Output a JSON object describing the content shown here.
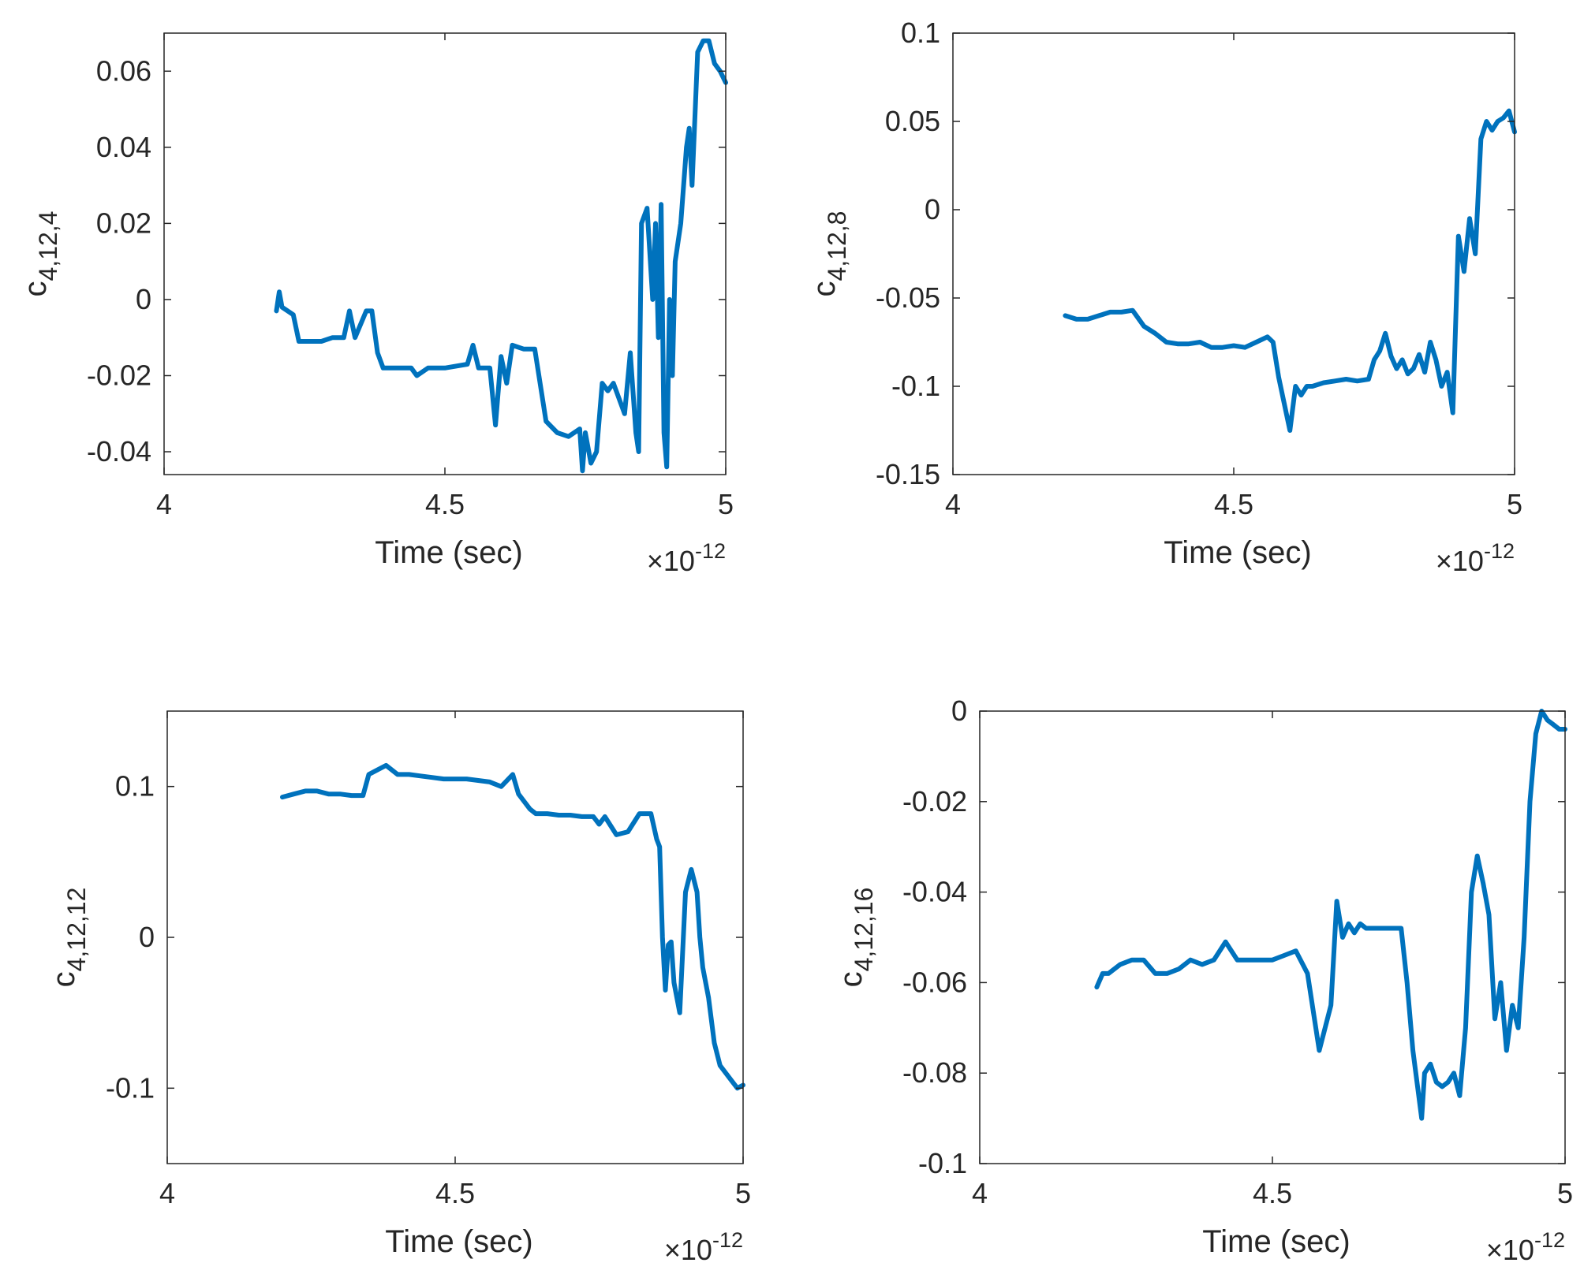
{
  "chart_data": [
    {
      "type": "line",
      "title": "",
      "xlabel": "Time (sec)",
      "ylabel_base": "c",
      "ylabel_sub": "4,12,4",
      "x_exponent_base": "×10",
      "x_exponent_power": "-12",
      "xlim": [
        4,
        5
      ],
      "ylim": [
        -0.046,
        0.07
      ],
      "xticks": [
        4,
        4.5,
        5
      ],
      "xtick_labels": [
        "4",
        "4.5",
        "5"
      ],
      "yticks": [
        -0.04,
        -0.02,
        0,
        0.02,
        0.04,
        0.06
      ],
      "ytick_labels": [
        "-0.04",
        "-0.02",
        "0",
        "0.02",
        "0.04",
        "0.06"
      ],
      "grid": false,
      "series": [
        {
          "name": "c4,12,4",
          "color": "#0072BD",
          "x": [
            4.2,
            4.205,
            4.21,
            4.22,
            4.23,
            4.24,
            4.26,
            4.28,
            4.3,
            4.32,
            4.33,
            4.34,
            4.36,
            4.37,
            4.38,
            4.39,
            4.4,
            4.42,
            4.44,
            4.45,
            4.47,
            4.5,
            4.54,
            4.55,
            4.56,
            4.58,
            4.59,
            4.6,
            4.61,
            4.62,
            4.64,
            4.66,
            4.68,
            4.7,
            4.72,
            4.74,
            4.745,
            4.75,
            4.76,
            4.77,
            4.78,
            4.79,
            4.8,
            4.82,
            4.83,
            4.84,
            4.845,
            4.85,
            4.86,
            4.87,
            4.875,
            4.88,
            4.885,
            4.89,
            4.895,
            4.9,
            4.905,
            4.91,
            4.92,
            4.93,
            4.935,
            4.94,
            4.95,
            4.96,
            4.97,
            4.98,
            4.99,
            5.0
          ],
          "y": [
            -0.003,
            0.002,
            -0.002,
            -0.003,
            -0.004,
            -0.011,
            -0.011,
            -0.011,
            -0.01,
            -0.01,
            -0.003,
            -0.01,
            -0.003,
            -0.003,
            -0.014,
            -0.018,
            -0.018,
            -0.018,
            -0.018,
            -0.02,
            -0.018,
            -0.018,
            -0.017,
            -0.012,
            -0.018,
            -0.018,
            -0.033,
            -0.015,
            -0.022,
            -0.012,
            -0.013,
            -0.013,
            -0.032,
            -0.035,
            -0.036,
            -0.034,
            -0.045,
            -0.035,
            -0.043,
            -0.04,
            -0.022,
            -0.024,
            -0.022,
            -0.03,
            -0.014,
            -0.035,
            -0.04,
            0.02,
            0.024,
            0.0,
            0.02,
            -0.01,
            0.025,
            -0.035,
            -0.044,
            0.0,
            -0.02,
            0.01,
            0.02,
            0.04,
            0.045,
            0.03,
            0.065,
            0.068,
            0.068,
            0.062,
            0.06,
            0.057
          ]
        }
      ]
    },
    {
      "type": "line",
      "title": "",
      "xlabel": "Time (sec)",
      "ylabel_base": "c",
      "ylabel_sub": "4,12,8",
      "x_exponent_base": "×10",
      "x_exponent_power": "-12",
      "xlim": [
        4,
        5
      ],
      "ylim": [
        -0.15,
        0.1
      ],
      "xticks": [
        4,
        4.5,
        5
      ],
      "xtick_labels": [
        "4",
        "4.5",
        "5"
      ],
      "yticks": [
        -0.15,
        -0.1,
        -0.05,
        0,
        0.05,
        0.1
      ],
      "ytick_labels": [
        "-0.15",
        "-0.1",
        "-0.05",
        "0",
        "0.05",
        "0.1"
      ],
      "grid": false,
      "series": [
        {
          "name": "c4,12,8",
          "color": "#0072BD",
          "x": [
            4.2,
            4.22,
            4.24,
            4.26,
            4.28,
            4.3,
            4.32,
            4.34,
            4.36,
            4.38,
            4.4,
            4.42,
            4.44,
            4.46,
            4.48,
            4.5,
            4.52,
            4.54,
            4.56,
            4.57,
            4.58,
            4.59,
            4.6,
            4.61,
            4.62,
            4.63,
            4.64,
            4.66,
            4.68,
            4.7,
            4.72,
            4.74,
            4.75,
            4.76,
            4.77,
            4.78,
            4.79,
            4.8,
            4.81,
            4.82,
            4.83,
            4.84,
            4.85,
            4.86,
            4.87,
            4.88,
            4.89,
            4.9,
            4.91,
            4.92,
            4.93,
            4.94,
            4.95,
            4.96,
            4.97,
            4.98,
            4.99,
            5.0
          ],
          "y": [
            -0.06,
            -0.062,
            -0.062,
            -0.06,
            -0.058,
            -0.058,
            -0.057,
            -0.066,
            -0.07,
            -0.075,
            -0.076,
            -0.076,
            -0.075,
            -0.078,
            -0.078,
            -0.077,
            -0.078,
            -0.075,
            -0.072,
            -0.075,
            -0.095,
            -0.11,
            -0.125,
            -0.1,
            -0.105,
            -0.1,
            -0.1,
            -0.098,
            -0.097,
            -0.096,
            -0.097,
            -0.096,
            -0.085,
            -0.08,
            -0.07,
            -0.083,
            -0.09,
            -0.085,
            -0.093,
            -0.09,
            -0.082,
            -0.092,
            -0.075,
            -0.085,
            -0.1,
            -0.092,
            -0.115,
            -0.015,
            -0.035,
            -0.005,
            -0.025,
            0.04,
            0.05,
            0.045,
            0.05,
            0.052,
            0.056,
            0.044
          ]
        }
      ]
    },
    {
      "type": "line",
      "title": "",
      "xlabel": "Time (sec)",
      "ylabel_base": "c",
      "ylabel_sub": "4,12,12",
      "x_exponent_base": "×10",
      "x_exponent_power": "-12",
      "xlim": [
        4,
        5
      ],
      "ylim": [
        -0.15,
        0.15
      ],
      "xticks": [
        4,
        4.5,
        5
      ],
      "xtick_labels": [
        "4",
        "4.5",
        "5"
      ],
      "yticks": [
        -0.1,
        0,
        0.1
      ],
      "ytick_labels": [
        "-0.1",
        "0",
        "0.1"
      ],
      "grid": false,
      "series": [
        {
          "name": "c4,12,12",
          "color": "#0072BD",
          "x": [
            4.2,
            4.22,
            4.24,
            4.26,
            4.28,
            4.3,
            4.32,
            4.34,
            4.35,
            4.36,
            4.38,
            4.4,
            4.42,
            4.44,
            4.46,
            4.48,
            4.5,
            4.52,
            4.54,
            4.56,
            4.58,
            4.6,
            4.61,
            4.62,
            4.63,
            4.64,
            4.66,
            4.68,
            4.7,
            4.72,
            4.74,
            4.75,
            4.76,
            4.78,
            4.8,
            4.82,
            4.84,
            4.85,
            4.855,
            4.86,
            4.865,
            4.87,
            4.875,
            4.88,
            4.89,
            4.9,
            4.91,
            4.92,
            4.925,
            4.93,
            4.94,
            4.95,
            4.96,
            4.97,
            4.98,
            4.99,
            5.0
          ],
          "y": [
            0.093,
            0.095,
            0.097,
            0.097,
            0.095,
            0.095,
            0.094,
            0.094,
            0.108,
            0.11,
            0.114,
            0.108,
            0.108,
            0.107,
            0.106,
            0.105,
            0.105,
            0.105,
            0.104,
            0.103,
            0.1,
            0.108,
            0.095,
            0.09,
            0.085,
            0.082,
            0.082,
            0.081,
            0.081,
            0.08,
            0.08,
            0.075,
            0.08,
            0.068,
            0.07,
            0.082,
            0.082,
            0.065,
            0.06,
            0.0,
            -0.035,
            -0.005,
            -0.003,
            -0.03,
            -0.05,
            0.03,
            0.045,
            0.03,
            0.0,
            -0.02,
            -0.04,
            -0.07,
            -0.085,
            -0.09,
            -0.095,
            -0.1,
            -0.098
          ]
        }
      ]
    },
    {
      "type": "line",
      "title": "",
      "xlabel": "Time (sec)",
      "ylabel_base": "c",
      "ylabel_sub": "4,12,16",
      "x_exponent_base": "×10",
      "x_exponent_power": "-12",
      "xlim": [
        4,
        5
      ],
      "ylim": [
        -0.1,
        0
      ],
      "xticks": [
        4,
        4.5,
        5
      ],
      "xtick_labels": [
        "4",
        "4.5",
        "5"
      ],
      "yticks": [
        -0.1,
        -0.08,
        -0.06,
        -0.04,
        -0.02,
        0
      ],
      "ytick_labels": [
        "-0.1",
        "-0.08",
        "-0.06",
        "-0.04",
        "-0.02",
        "0"
      ],
      "grid": false,
      "series": [
        {
          "name": "c4,12,16",
          "color": "#0072BD",
          "x": [
            4.2,
            4.21,
            4.22,
            4.24,
            4.26,
            4.28,
            4.3,
            4.32,
            4.34,
            4.36,
            4.38,
            4.4,
            4.42,
            4.44,
            4.46,
            4.48,
            4.5,
            4.52,
            4.54,
            4.56,
            4.58,
            4.6,
            4.61,
            4.62,
            4.63,
            4.64,
            4.65,
            4.66,
            4.68,
            4.7,
            4.72,
            4.73,
            4.74,
            4.75,
            4.755,
            4.76,
            4.77,
            4.78,
            4.79,
            4.8,
            4.81,
            4.82,
            4.83,
            4.84,
            4.85,
            4.86,
            4.87,
            4.88,
            4.89,
            4.9,
            4.91,
            4.92,
            4.93,
            4.94,
            4.95,
            4.96,
            4.97,
            4.98,
            4.99,
            5.0
          ],
          "y": [
            -0.061,
            -0.058,
            -0.058,
            -0.056,
            -0.055,
            -0.055,
            -0.058,
            -0.058,
            -0.057,
            -0.055,
            -0.056,
            -0.055,
            -0.051,
            -0.055,
            -0.055,
            -0.055,
            -0.055,
            -0.054,
            -0.053,
            -0.058,
            -0.075,
            -0.065,
            -0.042,
            -0.05,
            -0.047,
            -0.049,
            -0.047,
            -0.048,
            -0.048,
            -0.048,
            -0.048,
            -0.06,
            -0.075,
            -0.085,
            -0.09,
            -0.08,
            -0.078,
            -0.082,
            -0.083,
            -0.082,
            -0.08,
            -0.085,
            -0.07,
            -0.04,
            -0.032,
            -0.038,
            -0.045,
            -0.068,
            -0.06,
            -0.075,
            -0.065,
            -0.07,
            -0.05,
            -0.02,
            -0.005,
            0.0,
            -0.002,
            -0.003,
            -0.004,
            -0.004
          ]
        }
      ]
    }
  ]
}
